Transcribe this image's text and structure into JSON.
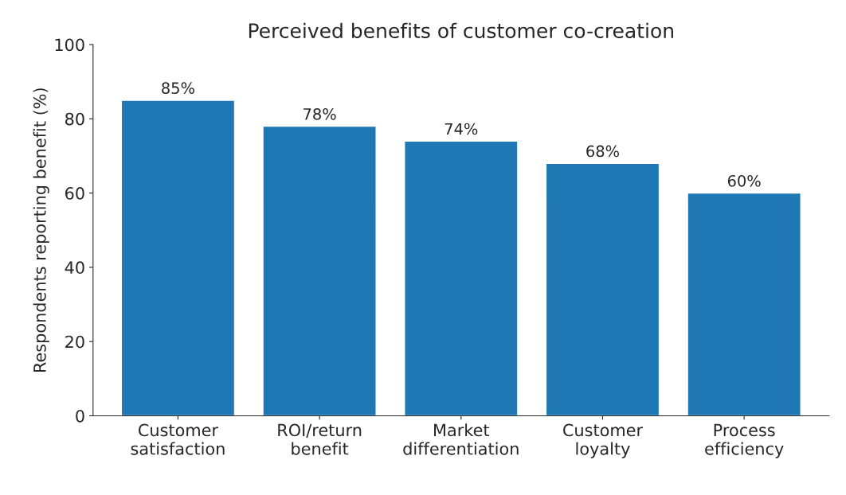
{
  "chart_data": {
    "type": "bar",
    "title": "Perceived benefits of customer co-creation",
    "ylabel": "Respondents reporting benefit (%)",
    "categories": [
      "Customer\nsatisfaction",
      "ROI/return\nbenefit",
      "Market\ndifferentiation",
      "Customer\nloyalty",
      "Process\nefficiency"
    ],
    "values": [
      85,
      78,
      74,
      68,
      60
    ],
    "value_labels": [
      "85%",
      "78%",
      "74%",
      "68%",
      "60%"
    ],
    "color": "#1f77b4",
    "ylim": [
      0,
      100
    ],
    "yticks": [
      0,
      20,
      40,
      60,
      80,
      100
    ],
    "grid": false
  }
}
